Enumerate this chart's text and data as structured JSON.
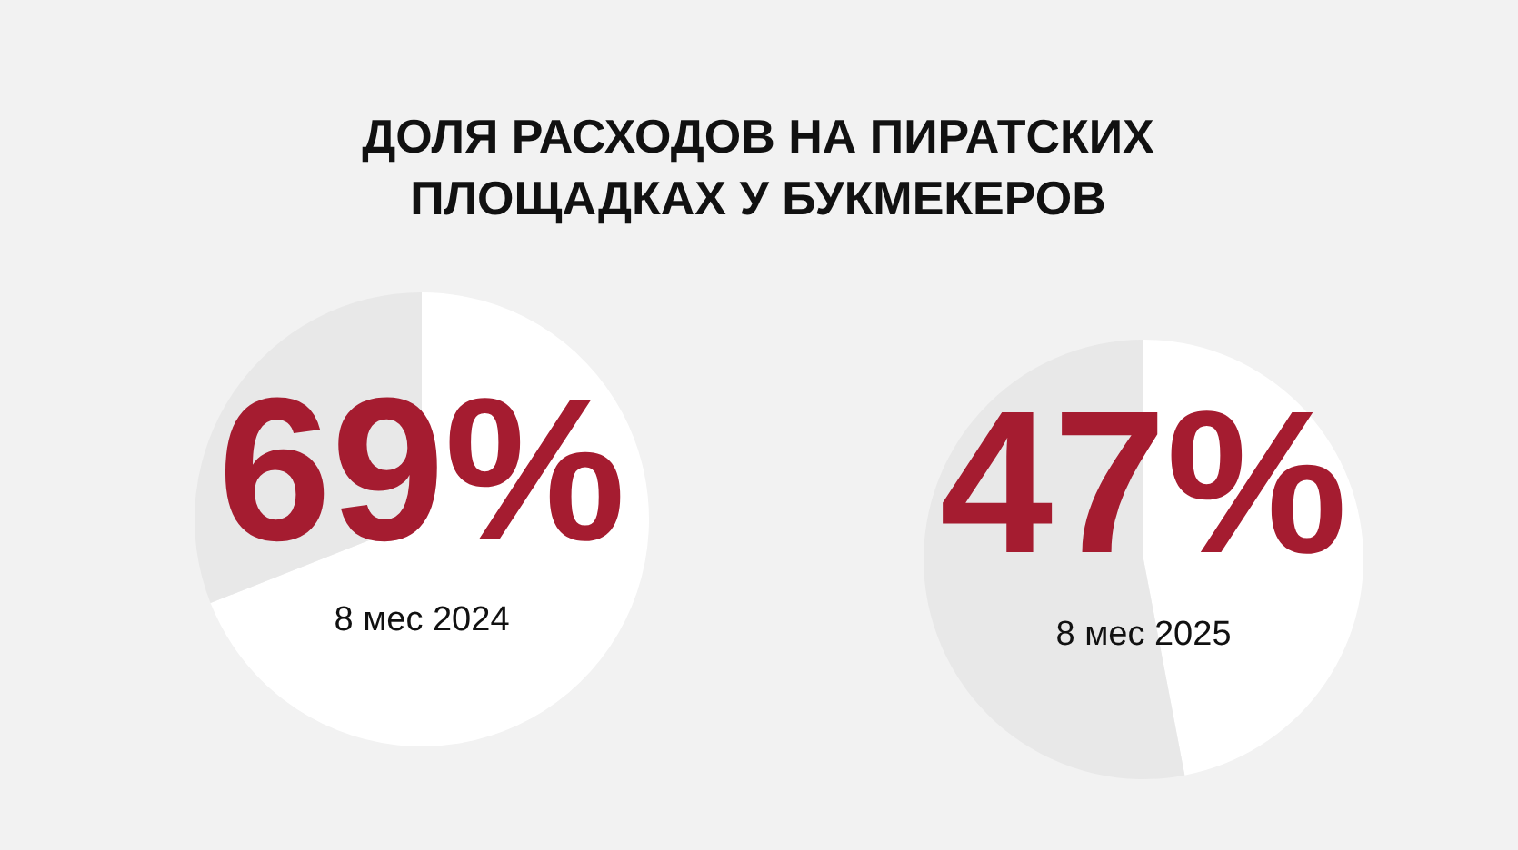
{
  "chart_data": [
    {
      "type": "pie",
      "title": "ДОЛЯ РАСХОДОВ НА ПИРАТСКИХ ПЛОЩАДКАХ У БУКМЕКЕРОВ",
      "subtitle": "8 мес 2024",
      "categories": [
        null,
        null
      ],
      "values": [
        69,
        31
      ],
      "colors": [
        "#ffffff",
        "#e8e8e8"
      ],
      "value_labels": [
        "69%",
        null
      ],
      "legend": false
    },
    {
      "type": "pie",
      "subtitle": "8 мес 2025",
      "categories": [
        null,
        null
      ],
      "values": [
        47,
        53
      ],
      "colors": [
        "#ffffff",
        "#e8e8e8"
      ],
      "value_labels": [
        "47%",
        null
      ],
      "legend": false
    }
  ]
}
